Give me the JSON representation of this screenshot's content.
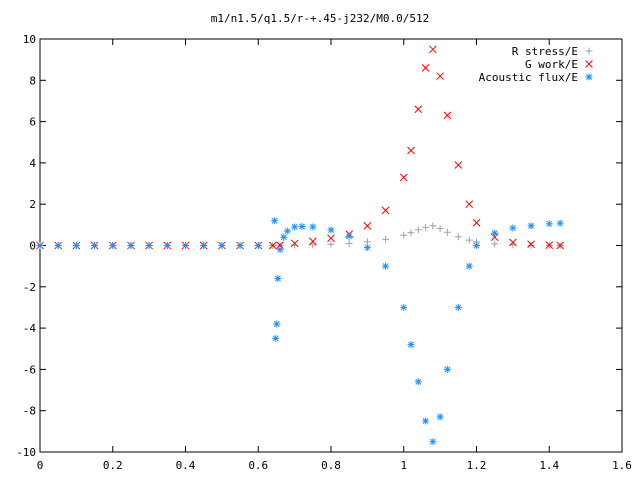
{
  "chart_data": {
    "type": "scatter",
    "title": "m1/n1.5/q1.5/r-+.45-j232/M0.0/512",
    "xlabel": "",
    "ylabel": "",
    "xlim": [
      0,
      1.6
    ],
    "ylim": [
      -10,
      10
    ],
    "x_ticks": [
      0,
      0.2,
      0.4,
      0.6,
      0.8,
      1,
      1.2,
      1.4,
      1.6
    ],
    "x_tick_labels": [
      "0",
      "0.2",
      "0.4",
      "0.6",
      "0.8",
      "1",
      "1.2",
      "1.4",
      "1.6"
    ],
    "y_ticks": [
      10,
      8,
      6,
      4,
      2,
      0,
      -2,
      -4,
      -6,
      -8,
      -10
    ],
    "y_tick_labels": [
      "10",
      "8",
      "6",
      "4",
      "2",
      "0",
      "-2",
      "-4",
      "-6",
      "-8",
      "-10"
    ],
    "grid": false,
    "legend_position": "top-right",
    "series": [
      {
        "name": "R stress/E",
        "marker": "plus",
        "color": "#a0a0a0",
        "x": [
          0.0,
          0.05,
          0.1,
          0.15,
          0.2,
          0.25,
          0.3,
          0.35,
          0.4,
          0.45,
          0.5,
          0.55,
          0.6,
          0.64,
          0.66,
          0.7,
          0.75,
          0.8,
          0.85,
          0.9,
          0.95,
          1.0,
          1.02,
          1.04,
          1.06,
          1.08,
          1.1,
          1.12,
          1.15,
          1.18,
          1.2,
          1.25,
          1.3,
          1.35,
          1.4,
          1.43
        ],
        "y": [
          0.0,
          0.0,
          0.0,
          0.0,
          0.0,
          0.0,
          0.0,
          0.0,
          0.0,
          0.0,
          0.0,
          0.0,
          0.0,
          0.0,
          0.0,
          0.02,
          0.03,
          0.06,
          0.1,
          0.18,
          0.3,
          0.5,
          0.62,
          0.76,
          0.88,
          0.95,
          0.82,
          0.64,
          0.42,
          0.26,
          0.18,
          0.08,
          0.03,
          0.01,
          0.0,
          0.0
        ]
      },
      {
        "name": "G work/E",
        "marker": "cross",
        "color": "#ff0000",
        "x": [
          0.0,
          0.05,
          0.1,
          0.15,
          0.2,
          0.25,
          0.3,
          0.35,
          0.4,
          0.45,
          0.5,
          0.55,
          0.6,
          0.64,
          0.66,
          0.7,
          0.75,
          0.8,
          0.85,
          0.9,
          0.95,
          1.0,
          1.02,
          1.04,
          1.06,
          1.08,
          1.1,
          1.12,
          1.15,
          1.18,
          1.2,
          1.25,
          1.3,
          1.35,
          1.4,
          1.43
        ],
        "y": [
          0.0,
          0.0,
          0.0,
          0.0,
          0.0,
          0.0,
          0.0,
          0.0,
          0.0,
          0.0,
          0.0,
          0.0,
          0.0,
          0.0,
          0.02,
          0.1,
          0.2,
          0.35,
          0.55,
          0.95,
          1.7,
          3.3,
          4.6,
          6.6,
          8.6,
          9.5,
          8.2,
          6.3,
          3.9,
          2.0,
          1.1,
          0.4,
          0.15,
          0.06,
          0.02,
          0.0
        ]
      },
      {
        "name": "Acoustic flux/E",
        "marker": "star",
        "color": "#1e90ff",
        "x": [
          0.0,
          0.05,
          0.1,
          0.15,
          0.2,
          0.25,
          0.3,
          0.35,
          0.4,
          0.45,
          0.5,
          0.55,
          0.6,
          0.645,
          0.648,
          0.651,
          0.654,
          0.66,
          0.67,
          0.68,
          0.7,
          0.72,
          0.75,
          0.8,
          0.85,
          0.9,
          0.95,
          1.0,
          1.02,
          1.04,
          1.06,
          1.08,
          1.1,
          1.12,
          1.15,
          1.18,
          1.2,
          1.25,
          1.3,
          1.35,
          1.4,
          1.43
        ],
        "y": [
          0.0,
          0.0,
          0.0,
          0.0,
          0.0,
          0.0,
          0.0,
          0.0,
          0.0,
          0.0,
          0.0,
          0.0,
          0.0,
          1.2,
          -4.5,
          -3.8,
          -1.6,
          -0.2,
          0.4,
          0.7,
          0.9,
          0.92,
          0.9,
          0.75,
          0.45,
          -0.1,
          -1.0,
          -3.0,
          -4.8,
          -6.6,
          -8.5,
          -9.5,
          -8.3,
          -6.0,
          -3.0,
          -1.0,
          0.0,
          0.6,
          0.85,
          0.95,
          1.05,
          1.08
        ]
      }
    ]
  }
}
